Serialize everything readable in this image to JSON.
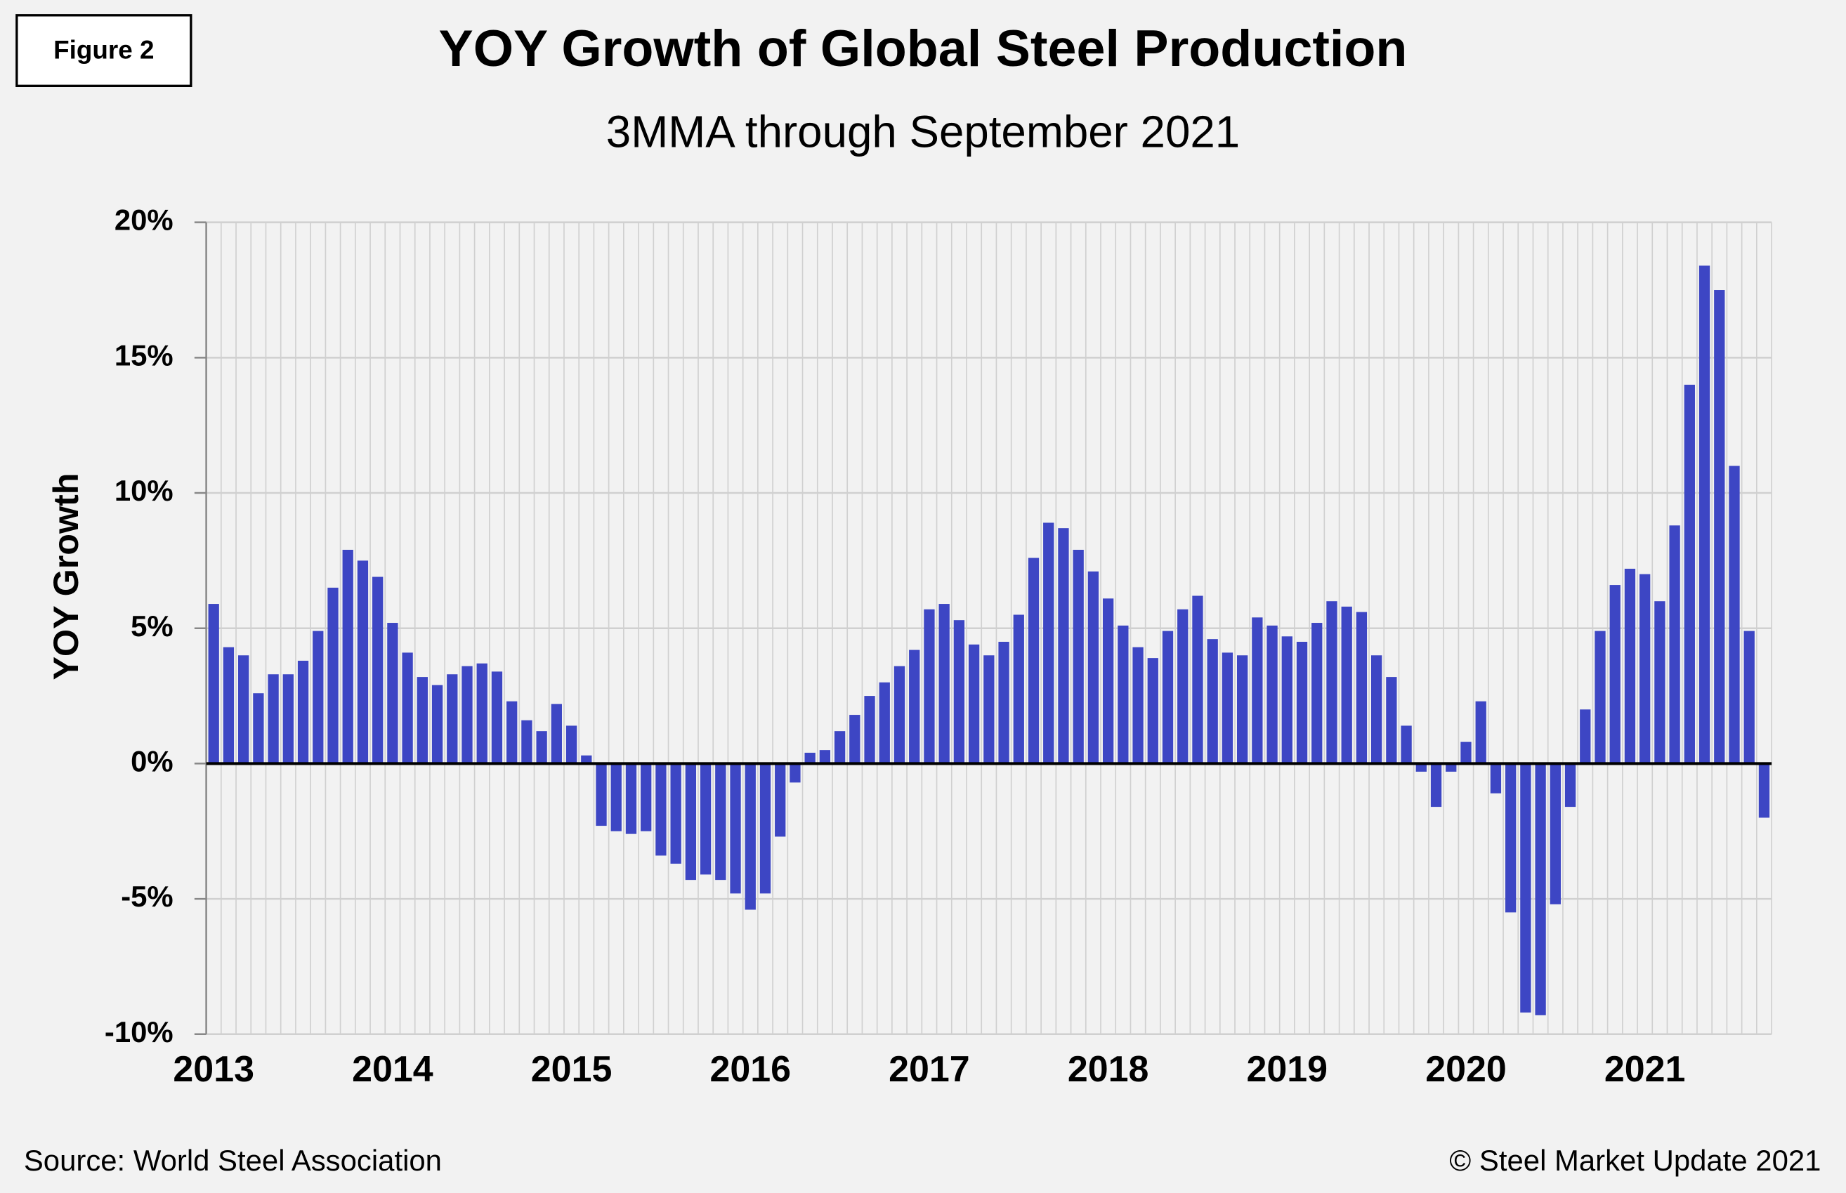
{
  "figure_label": "Figure 2",
  "source": "Source: World Steel Association",
  "copyright": "© Steel Market Update 2021",
  "chart_data": {
    "type": "bar",
    "title": "YOY Growth of Global Steel Production",
    "subtitle": "3MMA through September 2021",
    "y_label": "YOY Growth",
    "color": "#3d46c4",
    "grid": true,
    "categories": [
      "2013",
      null,
      null,
      null,
      null,
      null,
      null,
      null,
      null,
      null,
      null,
      null,
      "2014",
      null,
      null,
      null,
      null,
      null,
      null,
      null,
      null,
      null,
      null,
      null,
      "2015",
      null,
      null,
      null,
      null,
      null,
      null,
      null,
      null,
      null,
      null,
      null,
      "2016",
      null,
      null,
      null,
      null,
      null,
      null,
      null,
      null,
      null,
      null,
      null,
      "2017",
      null,
      null,
      null,
      null,
      null,
      null,
      null,
      null,
      null,
      null,
      null,
      "2018",
      null,
      null,
      null,
      null,
      null,
      null,
      null,
      null,
      null,
      null,
      null,
      "2019",
      null,
      null,
      null,
      null,
      null,
      null,
      null,
      null,
      null,
      null,
      null,
      "2020",
      null,
      null,
      null,
      null,
      null,
      null,
      null,
      null,
      null,
      null,
      null,
      "2021",
      null,
      null,
      null,
      null,
      null,
      null,
      null,
      null
    ],
    "values": [
      5.9,
      4.3,
      4.0,
      2.6,
      3.3,
      3.3,
      3.8,
      4.9,
      6.5,
      7.9,
      7.5,
      6.9,
      5.2,
      4.1,
      3.2,
      2.9,
      3.3,
      3.6,
      3.7,
      3.4,
      2.3,
      1.6,
      1.2,
      2.2,
      1.4,
      0.3,
      -2.3,
      -2.5,
      -2.6,
      -2.5,
      -3.4,
      -3.7,
      -4.3,
      -4.1,
      -4.3,
      -4.8,
      -5.4,
      -4.8,
      -2.7,
      -0.7,
      0.4,
      0.5,
      1.2,
      1.8,
      2.5,
      3.0,
      3.6,
      4.2,
      5.7,
      5.9,
      5.3,
      4.4,
      4.0,
      4.5,
      5.5,
      7.6,
      8.9,
      8.7,
      7.9,
      7.1,
      6.1,
      5.1,
      4.3,
      3.9,
      4.9,
      5.7,
      6.2,
      4.6,
      4.1,
      4.0,
      5.4,
      5.1,
      4.7,
      4.5,
      5.2,
      6.0,
      5.8,
      5.6,
      4.0,
      3.2,
      1.4,
      -0.3,
      -1.6,
      -0.3,
      0.8,
      2.3,
      -1.1,
      -5.5,
      -9.2,
      -9.3,
      -5.2,
      -1.6,
      2.0,
      4.9,
      6.6,
      7.2,
      7.0,
      6.0,
      8.8,
      14.0,
      18.4,
      17.5,
      11.0,
      4.9,
      -2.0
    ],
    "ylim": [
      -10,
      20
    ],
    "yticks": [
      {
        "value": -10,
        "label": "-10%"
      },
      {
        "value": -5,
        "label": "-5%"
      },
      {
        "value": 0,
        "label": "0%"
      },
      {
        "value": 5,
        "label": "5%"
      },
      {
        "value": 10,
        "label": "10%"
      },
      {
        "value": 15,
        "label": "15%"
      },
      {
        "value": 20,
        "label": "20%"
      }
    ]
  }
}
